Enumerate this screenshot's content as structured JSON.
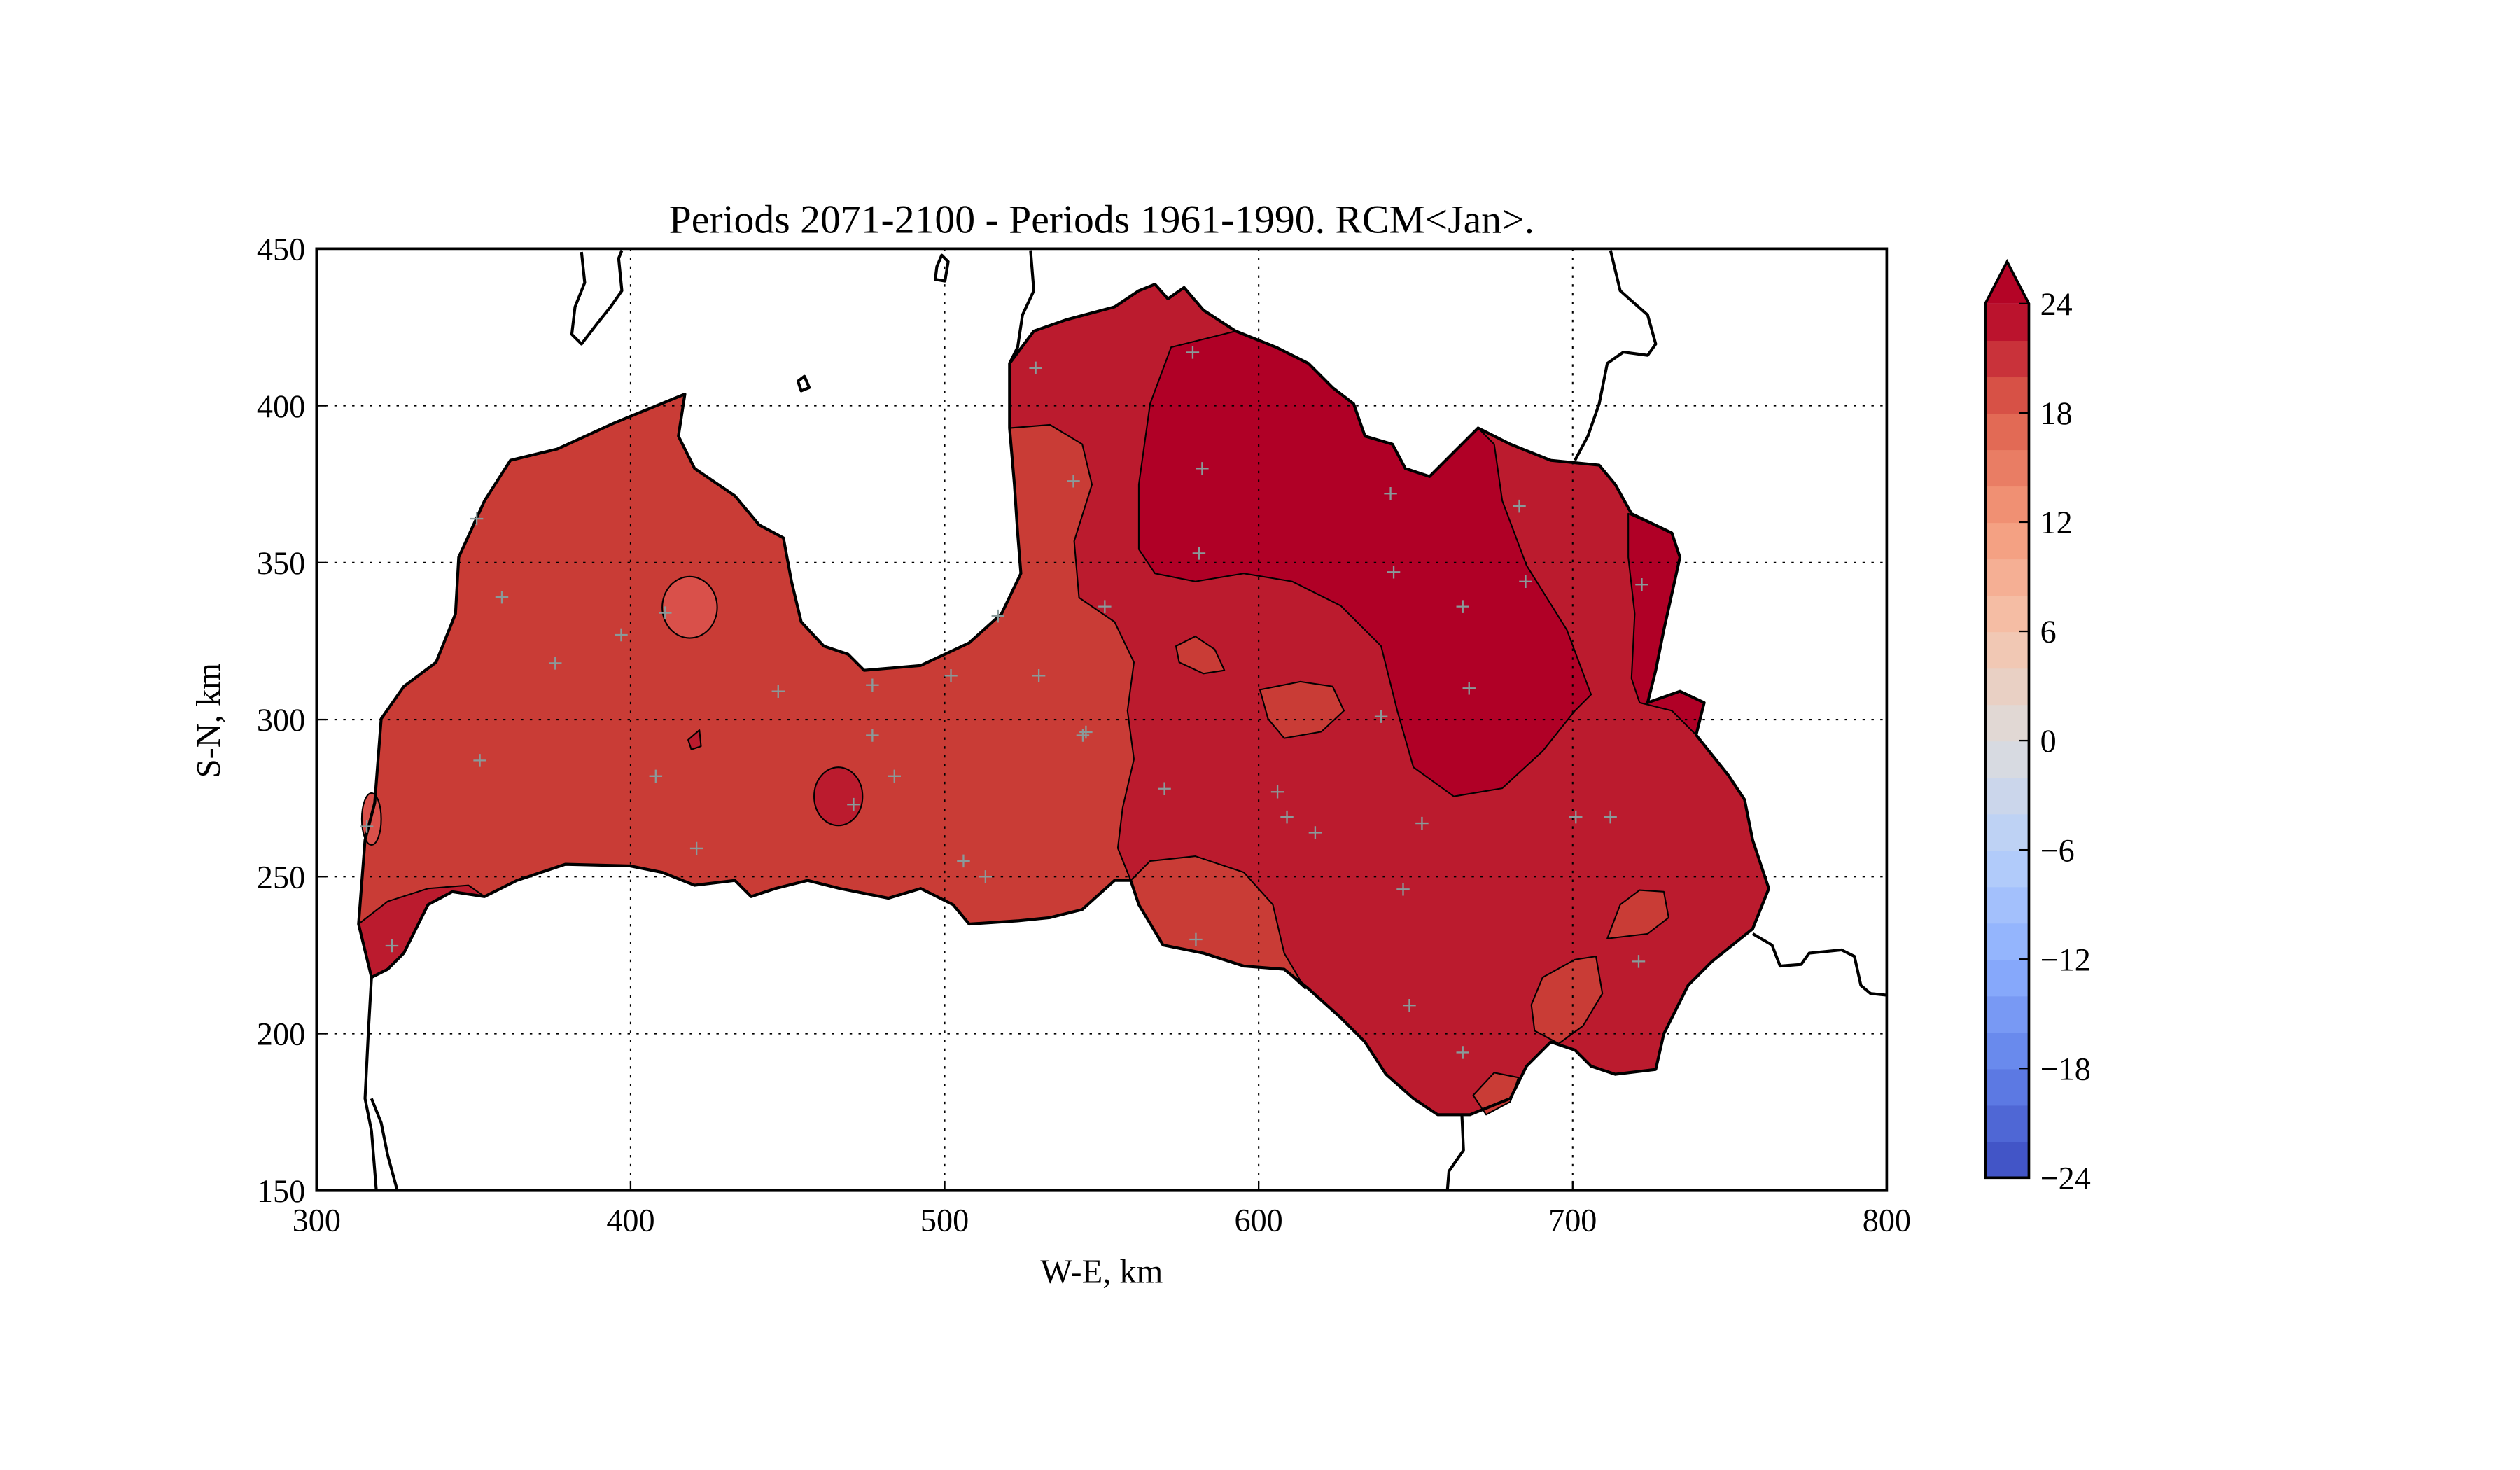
{
  "chart_data": {
    "type": "contour-map",
    "title": "Periods 2071-2100 - Periods 1961-1990. RCM<Jan>.",
    "xlabel": "W-E, km",
    "ylabel": "S-N, km",
    "xlim": [
      300,
      800
    ],
    "ylim": [
      150,
      450
    ],
    "xticks": [
      "300",
      "400",
      "500",
      "600",
      "700",
      "800"
    ],
    "xtick_values": [
      300,
      400,
      500,
      600,
      700,
      800
    ],
    "yticks": [
      "150",
      "200",
      "250",
      "300",
      "350",
      "400",
      "450"
    ],
    "ytick_values": [
      150,
      200,
      250,
      300,
      350,
      400,
      450
    ],
    "grid": true,
    "colorbar": {
      "min": -24,
      "max": 24,
      "step": 2,
      "extend": "max",
      "ticks": [
        "24",
        "18",
        "12",
        "6",
        "0",
        "−6",
        "−12",
        "−18",
        "−24"
      ],
      "tick_values": [
        24,
        18,
        12,
        6,
        0,
        -6,
        -12,
        -18,
        -24
      ],
      "cmap_anchors": [
        "#3b4cc0",
        "#6282ea",
        "#8db0fe",
        "#b8d0f9",
        "#dddcdc",
        "#f5c4ac",
        "#f49a7b",
        "#de604d",
        "#b40426"
      ],
      "over_color": "#b40426"
    },
    "levels_shown": {
      "level_18_20": "#d9504a",
      "level_20_22": "#c93c36",
      "level_22_24": "#bb1b2e",
      "level_over_24": "#b00026"
    },
    "stations_km": [
      [
        351,
        364
      ],
      [
        359,
        339
      ],
      [
        376,
        318
      ],
      [
        397,
        327
      ],
      [
        411,
        334
      ],
      [
        352,
        287
      ],
      [
        408,
        282
      ],
      [
        421,
        259
      ],
      [
        447,
        309
      ],
      [
        477,
        311
      ],
      [
        477,
        295
      ],
      [
        484,
        282
      ],
      [
        502,
        314
      ],
      [
        530,
        314
      ],
      [
        517,
        333
      ],
      [
        541,
        376
      ],
      [
        529,
        412
      ],
      [
        579,
        417
      ],
      [
        545,
        296
      ],
      [
        544,
        295
      ],
      [
        582,
        380
      ],
      [
        581,
        353
      ],
      [
        551,
        336
      ],
      [
        570,
        278
      ],
      [
        506,
        255
      ],
      [
        513,
        250
      ],
      [
        606,
        277
      ],
      [
        609,
        269
      ],
      [
        618,
        264
      ],
      [
        580,
        230
      ],
      [
        642,
        372
      ],
      [
        643,
        347
      ],
      [
        665,
        336
      ],
      [
        667,
        310
      ],
      [
        639,
        301
      ],
      [
        683,
        368
      ],
      [
        685,
        344
      ],
      [
        722,
        343
      ],
      [
        701,
        269
      ],
      [
        712,
        269
      ],
      [
        652,
        267
      ],
      [
        646,
        246
      ],
      [
        648,
        209
      ],
      [
        665,
        194
      ],
      [
        721,
        223
      ],
      [
        324,
        228
      ],
      [
        316,
        266
      ],
      [
        471,
        273
      ]
    ]
  }
}
